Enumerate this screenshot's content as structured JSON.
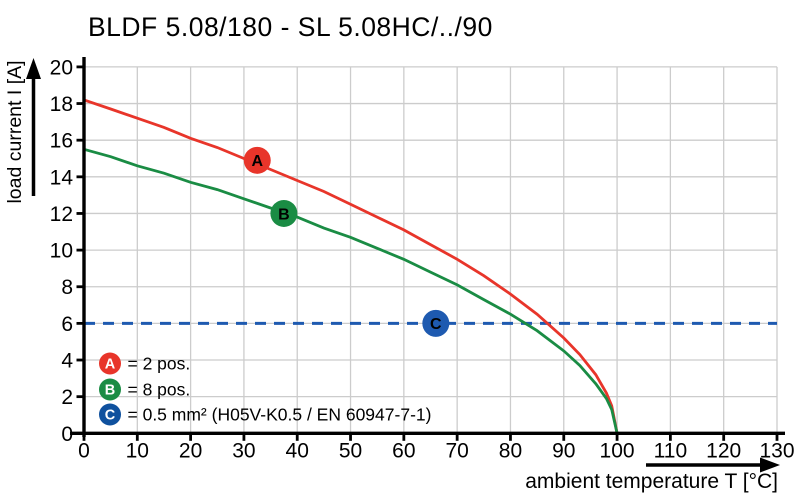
{
  "title": "BLDF 5.08/180 - SL 5.08HC/../90",
  "colors": {
    "series_a": "#e8352a",
    "series_b": "#1a8c44",
    "series_c": "#0f519e",
    "dashed_line": "#1e5ab0",
    "grid": "#cccccc",
    "axis": "#000000",
    "background": "#ffffff"
  },
  "axes": {
    "x": {
      "label": "ambient temperature T [°C]"
    },
    "y": {
      "label": "load current I [A]"
    }
  },
  "legend": {
    "items": [
      {
        "key": "A",
        "label": "= 2 pos."
      },
      {
        "key": "B",
        "label": "= 8 pos."
      },
      {
        "key": "C",
        "label": "= 0.5 mm² (H05V-K0.5 / EN 60947-7-1)"
      }
    ]
  },
  "chart_data": {
    "type": "line",
    "title": "BLDF 5.08/180 - SL 5.08HC/../90",
    "xlabel": "ambient temperature T [°C]",
    "ylabel": "load current I [A]",
    "xlim": [
      0,
      130
    ],
    "ylim": [
      0,
      20
    ],
    "x_ticks": [
      0,
      10,
      20,
      30,
      40,
      50,
      60,
      70,
      80,
      90,
      100,
      110,
      120,
      130
    ],
    "y_ticks": [
      0,
      2,
      4,
      6,
      8,
      10,
      12,
      14,
      16,
      18,
      20
    ],
    "grid": true,
    "legend_position": "inside-bottom-left",
    "series": [
      {
        "name": "A = 2 pos.",
        "style": "solid",
        "color": "#e8352a",
        "marker": {
          "label": "A",
          "T": 32.5,
          "I": 14.9
        },
        "T": [
          0,
          5,
          10,
          15,
          20,
          25,
          30,
          35,
          40,
          45,
          50,
          55,
          60,
          65,
          70,
          75,
          80,
          85,
          90,
          93,
          96,
          98,
          99,
          100
        ],
        "I": [
          18.2,
          17.7,
          17.2,
          16.7,
          16.1,
          15.6,
          15.0,
          14.4,
          13.8,
          13.2,
          12.5,
          11.8,
          11.1,
          10.3,
          9.5,
          8.6,
          7.6,
          6.5,
          5.2,
          4.3,
          3.2,
          2.2,
          1.5,
          0
        ]
      },
      {
        "name": "B = 8 pos.",
        "style": "solid",
        "color": "#1a8c44",
        "marker": {
          "label": "B",
          "T": 37.5,
          "I": 12.0
        },
        "T": [
          0,
          5,
          10,
          15,
          20,
          25,
          30,
          35,
          40,
          45,
          50,
          55,
          60,
          65,
          70,
          75,
          80,
          85,
          90,
          93,
          96,
          98,
          99,
          100
        ],
        "I": [
          15.5,
          15.1,
          14.6,
          14.2,
          13.7,
          13.3,
          12.8,
          12.3,
          11.8,
          11.2,
          10.7,
          10.1,
          9.5,
          8.8,
          8.1,
          7.3,
          6.5,
          5.6,
          4.5,
          3.7,
          2.7,
          1.9,
          1.3,
          0
        ]
      },
      {
        "name": "C = 0.5 mm² (H05V-K0.5 / EN 60947-7-1)",
        "style": "dashed",
        "color": "#1e5ab0",
        "marker": {
          "label": "C",
          "T": 66,
          "I": 6.0
        },
        "T": [
          0,
          130
        ],
        "I": [
          6,
          6
        ]
      }
    ]
  }
}
